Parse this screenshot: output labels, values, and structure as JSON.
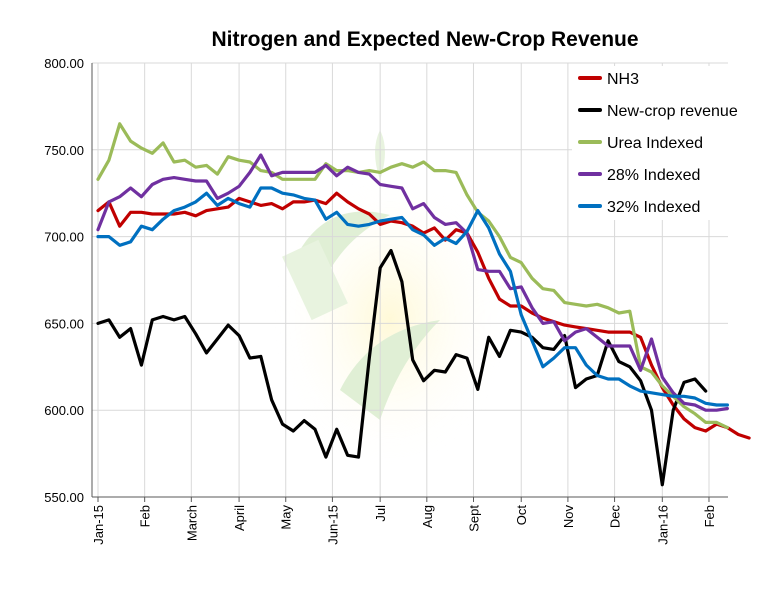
{
  "chart_data": {
    "type": "line",
    "title": "Nitrogen and Expected New-Crop Revenue",
    "xlabel": "",
    "ylabel": "",
    "ylim": [
      550,
      800
    ],
    "y_ticks": [
      "550.00",
      "600.00",
      "650.00",
      "700.00",
      "750.00",
      "800.00"
    ],
    "y_tick_values": [
      550,
      600,
      650,
      700,
      750,
      800
    ],
    "x_tick_labels": [
      {
        "label": "Jan-15",
        "week": 0
      },
      {
        "label": "Feb",
        "week": 4.3
      },
      {
        "label": "March",
        "week": 8.6
      },
      {
        "label": "April",
        "week": 13
      },
      {
        "label": "May",
        "week": 17.3
      },
      {
        "label": "Jun-15",
        "week": 21.6
      },
      {
        "label": "Jul",
        "week": 26
      },
      {
        "label": "Aug",
        "week": 30.3
      },
      {
        "label": "Sept",
        "week": 34.6
      },
      {
        "label": "Oct",
        "week": 39
      },
      {
        "label": "Nov",
        "week": 43.3
      },
      {
        "label": "Dec",
        "week": 47.6
      },
      {
        "label": "Jan-16",
        "week": 52
      },
      {
        "label": "Feb",
        "week": 56.3
      }
    ],
    "grid": true,
    "legend_position": "top-right",
    "series": [
      {
        "name": "NH3",
        "color": "#c00000",
        "values": [
          715,
          720,
          706,
          714,
          714,
          713,
          713,
          713,
          714,
          712,
          715,
          716,
          717,
          722,
          720,
          718,
          719,
          716,
          720,
          720,
          721,
          719,
          725,
          720,
          716,
          713,
          707,
          709,
          708,
          706,
          702,
          705,
          698,
          704,
          702,
          691,
          676,
          664,
          660,
          660,
          656,
          653,
          651,
          649,
          648,
          647,
          646,
          645,
          645,
          645,
          642,
          626,
          613,
          603,
          595,
          590,
          588,
          592,
          590,
          586,
          584
        ]
      },
      {
        "name": "New-crop revenue",
        "color": "#000000",
        "values": [
          650,
          652,
          642,
          647,
          626,
          652,
          654,
          652,
          654,
          644,
          633,
          641,
          649,
          643,
          630,
          631,
          606,
          592,
          588,
          594,
          589,
          573,
          589,
          574,
          573,
          630,
          682,
          692,
          674,
          629,
          617,
          623,
          622,
          632,
          630,
          612,
          642,
          631,
          646,
          645,
          642,
          636,
          635,
          643,
          613,
          618,
          620,
          640,
          628,
          625,
          617,
          600,
          557,
          600,
          616,
          618,
          611
        ]
      },
      {
        "name": "Urea Indexed",
        "color": "#9bbb59",
        "values": [
          733,
          744,
          765,
          755,
          751,
          748,
          754,
          743,
          744,
          740,
          741,
          736,
          746,
          744,
          743,
          738,
          737,
          733,
          733,
          733,
          733,
          742,
          738,
          738,
          737,
          738,
          737,
          740,
          742,
          740,
          743,
          738,
          738,
          737,
          724,
          714,
          709,
          700,
          688,
          685,
          676,
          670,
          669,
          662,
          661,
          660,
          661,
          659,
          656,
          657,
          625,
          622,
          614,
          608,
          602,
          598,
          593,
          593,
          590
        ]
      },
      {
        "name": "28% Indexed",
        "color": "#7030a0",
        "values": [
          704,
          720,
          723,
          728,
          723,
          730,
          733,
          734,
          733,
          732,
          732,
          722,
          725,
          729,
          737,
          747,
          735,
          737,
          737,
          737,
          737,
          741,
          735,
          740,
          737,
          736,
          730,
          729,
          728,
          716,
          719,
          711,
          707,
          708,
          702,
          681,
          680,
          680,
          670,
          671,
          659,
          650,
          651,
          640,
          645,
          647,
          642,
          637,
          637,
          637,
          623,
          641,
          619,
          610,
          604,
          603,
          600,
          600,
          601
        ]
      },
      {
        "name": "32% Indexed",
        "color": "#0070c0",
        "values": [
          700,
          700,
          695,
          697,
          706,
          704,
          710,
          715,
          717,
          720,
          725,
          718,
          722,
          719,
          717,
          728,
          728,
          725,
          724,
          722,
          721,
          710,
          714,
          707,
          706,
          707,
          709,
          710,
          711,
          704,
          701,
          695,
          699,
          696,
          703,
          715,
          705,
          690,
          680,
          655,
          640,
          625,
          630,
          636,
          636,
          626,
          620,
          618,
          618,
          614,
          611,
          610,
          609,
          608,
          608,
          607,
          604,
          603,
          603
        ]
      }
    ]
  }
}
